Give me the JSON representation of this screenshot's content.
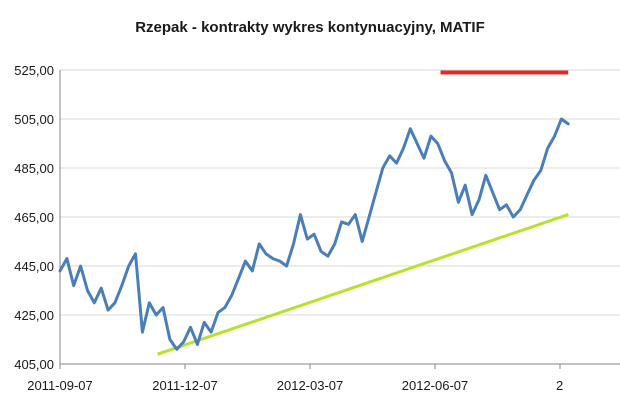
{
  "chart_data": {
    "type": "line",
    "title": "Rzepak - kontrakty wykres kontynuacyjny, MATIF",
    "ylim": [
      405,
      525
    ],
    "y_ticks": [
      "405,00",
      "425,00",
      "445,00",
      "465,00",
      "485,00",
      "505,00",
      "525,00"
    ],
    "x_ticks": [
      "2011-09-07",
      "2011-12-07",
      "2012-03-07",
      "2012-06-07",
      "2"
    ],
    "grid": "horizontal",
    "legend": "none",
    "series": [
      {
        "x": [
          "2011-09-07",
          "2011-09-12",
          "2011-09-17",
          "2011-09-22",
          "2011-09-27",
          "2011-10-02",
          "2011-10-07",
          "2011-10-12",
          "2011-10-17",
          "2011-10-22",
          "2011-10-27",
          "2011-11-01",
          "2011-11-06",
          "2011-11-11",
          "2011-11-16",
          "2011-11-21",
          "2011-11-26",
          "2011-12-01",
          "2011-12-06",
          "2011-12-11",
          "2011-12-16",
          "2011-12-21",
          "2011-12-26",
          "2011-12-31",
          "2012-01-05",
          "2012-01-10",
          "2012-01-15",
          "2012-01-20",
          "2012-01-25",
          "2012-01-30",
          "2012-02-04",
          "2012-02-09",
          "2012-02-14",
          "2012-02-19",
          "2012-02-24",
          "2012-02-29",
          "2012-03-05",
          "2012-03-10",
          "2012-03-15",
          "2012-03-20",
          "2012-03-25",
          "2012-03-30",
          "2012-04-04",
          "2012-04-09",
          "2012-04-14",
          "2012-04-19",
          "2012-04-24",
          "2012-04-29",
          "2012-05-04",
          "2012-05-09",
          "2012-05-14",
          "2012-05-19",
          "2012-05-24",
          "2012-05-29",
          "2012-06-03",
          "2012-06-08",
          "2012-06-13",
          "2012-06-18",
          "2012-06-23",
          "2012-06-28",
          "2012-07-03",
          "2012-07-08",
          "2012-07-13",
          "2012-07-18",
          "2012-07-23",
          "2012-07-28",
          "2012-08-02",
          "2012-08-07",
          "2012-08-12",
          "2012-08-17",
          "2012-08-22",
          "2012-08-27",
          "2012-09-01",
          "2012-09-06",
          "2012-09-11"
        ],
        "values": [
          443,
          448,
          437,
          445,
          435,
          430,
          436,
          427,
          430,
          437,
          445,
          450,
          418,
          430,
          425,
          428,
          415,
          411,
          414,
          420,
          413,
          422,
          418,
          426,
          428,
          433,
          440,
          447,
          443,
          454,
          450,
          448,
          447,
          445,
          454,
          466,
          456,
          458,
          451,
          449,
          454,
          463,
          462,
          466,
          455,
          465,
          475,
          485,
          490,
          487,
          493,
          501,
          495,
          489,
          498,
          495,
          488,
          483,
          471,
          478,
          466,
          472,
          482,
          475,
          468,
          470,
          465,
          468,
          474,
          480,
          484,
          493,
          498,
          505,
          503
        ]
      }
    ],
    "support_line": {
      "start": [
        "2011-11-17",
        409
      ],
      "end": [
        "2012-09-11",
        466
      ]
    },
    "resistance_line": {
      "start": [
        "2012-06-10",
        524
      ],
      "end": [
        "2012-09-11",
        524
      ]
    },
    "colors": {
      "series": "#4a7ebb",
      "support": "#b8e229",
      "resistance": "#e02b26",
      "grid": "#d9d9d9",
      "axis": "#868686"
    }
  }
}
